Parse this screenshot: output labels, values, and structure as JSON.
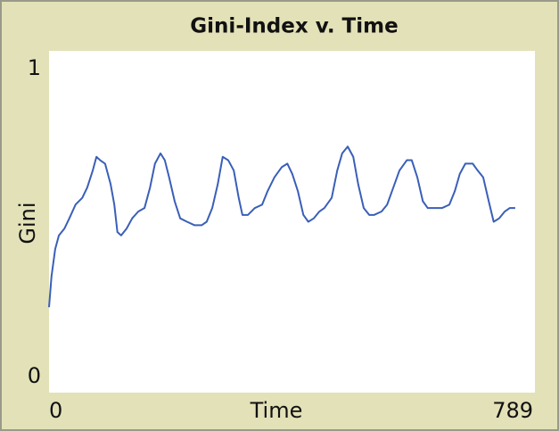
{
  "chart_data": {
    "type": "line",
    "title": "Gini-Index v. Time",
    "x_label": "Time",
    "y_label": "Gini",
    "xlim": [
      0,
      789
    ],
    "ylim": [
      0,
      1
    ],
    "xticks": [
      0,
      789
    ],
    "yticks": [
      0,
      1
    ],
    "grid": false,
    "x": [
      0,
      4,
      10,
      16,
      25,
      33,
      43,
      54,
      62,
      71,
      77,
      83,
      91,
      100,
      106,
      111,
      117,
      126,
      135,
      145,
      155,
      164,
      172,
      181,
      188,
      195,
      204,
      213,
      224,
      236,
      248,
      256,
      265,
      274,
      282,
      291,
      300,
      308,
      314,
      323,
      334,
      346,
      355,
      366,
      378,
      387,
      395,
      404,
      413,
      421,
      430,
      439,
      447,
      459,
      468,
      476,
      485,
      494,
      502,
      511,
      520,
      528,
      540,
      549,
      557,
      569,
      581,
      589,
      598,
      607,
      615,
      627,
      638,
      650,
      659,
      667,
      676,
      688,
      696,
      705,
      714,
      722,
      731,
      740,
      748,
      757
    ],
    "series": [
      {
        "color": "#3a5fb8",
        "values": [
          0.25,
          0.34,
          0.42,
          0.46,
          0.48,
          0.51,
          0.55,
          0.57,
          0.6,
          0.65,
          0.69,
          0.68,
          0.67,
          0.61,
          0.55,
          0.47,
          0.46,
          0.48,
          0.51,
          0.53,
          0.54,
          0.6,
          0.67,
          0.7,
          0.68,
          0.63,
          0.56,
          0.51,
          0.5,
          0.49,
          0.49,
          0.5,
          0.54,
          0.61,
          0.69,
          0.68,
          0.65,
          0.57,
          0.52,
          0.52,
          0.54,
          0.55,
          0.59,
          0.63,
          0.66,
          0.67,
          0.64,
          0.59,
          0.52,
          0.5,
          0.51,
          0.53,
          0.54,
          0.57,
          0.65,
          0.7,
          0.72,
          0.69,
          0.61,
          0.54,
          0.52,
          0.52,
          0.53,
          0.55,
          0.59,
          0.65,
          0.68,
          0.68,
          0.63,
          0.56,
          0.54,
          0.54,
          0.54,
          0.55,
          0.59,
          0.64,
          0.67,
          0.67,
          0.65,
          0.63,
          0.56,
          0.5,
          0.51,
          0.53,
          0.54,
          0.54
        ]
      }
    ]
  }
}
